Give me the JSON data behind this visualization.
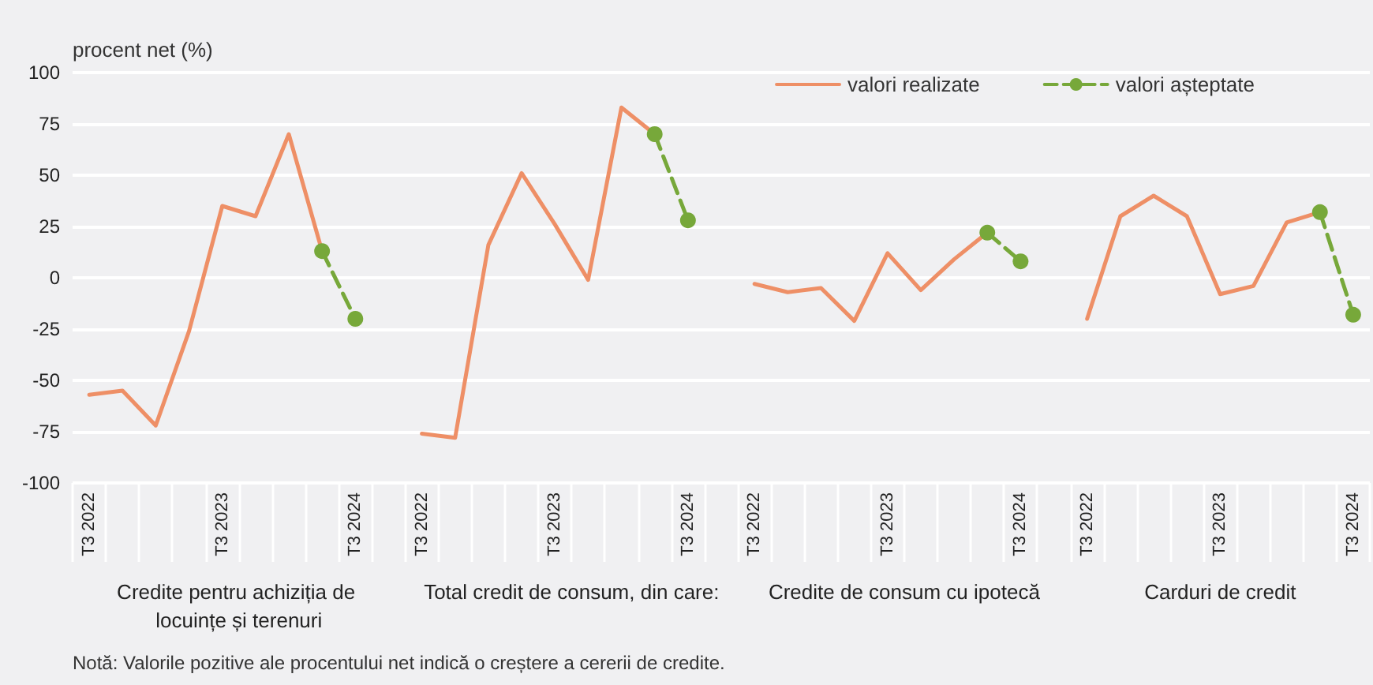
{
  "chart_data": {
    "type": "line",
    "ylabel": "procent net (%)",
    "categories": [
      "T3 2022",
      null,
      null,
      null,
      "T3 2023",
      null,
      null,
      null,
      "T3 2024",
      null,
      "T3 2022",
      null,
      null,
      null,
      "T3 2023",
      null,
      null,
      null,
      "T3 2024",
      null,
      "T3 2022",
      null,
      null,
      null,
      "T3 2023",
      null,
      null,
      null,
      "T3 2024",
      null,
      "T3 2022",
      null,
      null,
      null,
      "T3 2023",
      null,
      null,
      null,
      "T3 2024"
    ],
    "series": [
      {
        "name": "valori realizate",
        "color": "#ee8f66",
        "marker": "none",
        "line_style": "solid",
        "values": [
          -57,
          -55,
          -72,
          -26,
          35,
          30,
          70,
          13,
          null,
          null,
          -76,
          -78,
          16,
          51,
          26,
          -1,
          83,
          70,
          null,
          null,
          -3,
          -7,
          -5,
          -21,
          12,
          -6,
          9,
          22,
          null,
          null,
          -20,
          30,
          40,
          30,
          -8,
          -4,
          27,
          32,
          null
        ]
      },
      {
        "name": "valori așteptate",
        "color": "#77a83a",
        "marker": "circle",
        "line_style": "dashed",
        "values": [
          null,
          null,
          null,
          null,
          null,
          null,
          null,
          13,
          -20,
          null,
          null,
          null,
          null,
          null,
          null,
          null,
          null,
          70,
          28,
          null,
          null,
          null,
          null,
          null,
          null,
          null,
          null,
          22,
          8,
          null,
          null,
          null,
          null,
          null,
          null,
          null,
          null,
          32,
          -18
        ]
      }
    ],
    "ylim": [
      -100,
      100
    ],
    "yticks": [
      -100,
      -75,
      -50,
      -25,
      0,
      25,
      50,
      75,
      100
    ],
    "grid": "y",
    "legend": "top right",
    "annotations": [
      "Credite pentru achiziția de locuințe și terenuri",
      "Total credit de consum, din care:",
      "Credite de consum cu ipotecă",
      "Carduri de credit",
      "Notă: Valorile pozitive ale procentului net indică o creștere a cererii de credite."
    ]
  }
}
